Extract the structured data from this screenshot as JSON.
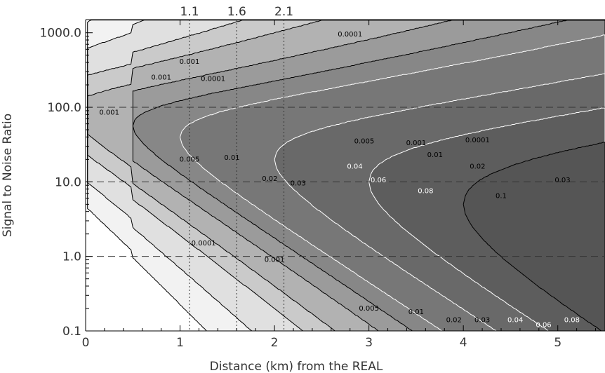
{
  "chart_data": {
    "type": "contour",
    "xlabel": "Distance (km) from the REAL",
    "ylabel": "Signal to Noise Ratio",
    "xlim": [
      0,
      5.5
    ],
    "ylim": [
      0.1,
      1500
    ],
    "y_scale": "log",
    "x_ticks": [
      "0",
      "1",
      "2",
      "3",
      "4",
      "5"
    ],
    "y_ticks": [
      "0.1",
      "1.0",
      "10.0",
      "100.0",
      "1000.0"
    ],
    "top_markers": [
      {
        "label": "1.1",
        "x": 1.1
      },
      {
        "label": "1.6",
        "x": 1.6
      },
      {
        "label": "2.1",
        "x": 2.1
      }
    ],
    "reference_lines_y": [
      1,
      10,
      100
    ],
    "contour_levels": [
      0.0001,
      0.001,
      0.005,
      0.01,
      0.02,
      0.03,
      0.04,
      0.06,
      0.08,
      0.1
    ],
    "contour_labels": [
      {
        "text": "0.0001",
        "x": 2.8,
        "y": 950,
        "color": "#000000"
      },
      {
        "text": "0.001",
        "x": 1.1,
        "y": 410,
        "color": "#000000"
      },
      {
        "text": "0.001",
        "x": 0.8,
        "y": 250,
        "color": "#000000"
      },
      {
        "text": "0.0001",
        "x": 1.35,
        "y": 240,
        "color": "#000000"
      },
      {
        "text": "0.001",
        "x": 0.25,
        "y": 85,
        "color": "#000000"
      },
      {
        "text": "0.005",
        "x": 1.1,
        "y": 20,
        "color": "#000000"
      },
      {
        "text": "0.01",
        "x": 1.55,
        "y": 21,
        "color": "#000000"
      },
      {
        "text": "0.02",
        "x": 1.95,
        "y": 11,
        "color": "#000000"
      },
      {
        "text": "0.03",
        "x": 2.25,
        "y": 9.5,
        "color": "#000000"
      },
      {
        "text": "0.04",
        "x": 2.85,
        "y": 16,
        "color": "#ffffff"
      },
      {
        "text": "0.06",
        "x": 3.1,
        "y": 10.5,
        "color": "#ffffff"
      },
      {
        "text": "0.08",
        "x": 3.6,
        "y": 7.5,
        "color": "#ffffff"
      },
      {
        "text": "0.1",
        "x": 4.4,
        "y": 6.5,
        "color": "#000000"
      },
      {
        "text": "0.005",
        "x": 2.95,
        "y": 35,
        "color": "#000000"
      },
      {
        "text": "0.001",
        "x": 3.5,
        "y": 33,
        "color": "#000000"
      },
      {
        "text": "0.01",
        "x": 3.7,
        "y": 23,
        "color": "#000000"
      },
      {
        "text": "0.0001",
        "x": 4.15,
        "y": 36,
        "color": "#000000"
      },
      {
        "text": "0.02",
        "x": 4.15,
        "y": 16,
        "color": "#000000"
      },
      {
        "text": "0.03",
        "x": 5.05,
        "y": 10.5,
        "color": "#000000"
      },
      {
        "text": "0.0001",
        "x": 1.25,
        "y": 1.5,
        "color": "#000000"
      },
      {
        "text": "0.001",
        "x": 2.0,
        "y": 0.9,
        "color": "#000000"
      },
      {
        "text": "0.005",
        "x": 3.0,
        "y": 0.2,
        "color": "#000000"
      },
      {
        "text": "0.01",
        "x": 3.5,
        "y": 0.18,
        "color": "#000000"
      },
      {
        "text": "0.02",
        "x": 3.9,
        "y": 0.14,
        "color": "#000000"
      },
      {
        "text": "0.03",
        "x": 4.2,
        "y": 0.14,
        "color": "#000000"
      },
      {
        "text": "0.04",
        "x": 4.55,
        "y": 0.14,
        "color": "#ffffff"
      },
      {
        "text": "0.06",
        "x": 4.85,
        "y": 0.12,
        "color": "#ffffff"
      },
      {
        "text": "0.08",
        "x": 5.15,
        "y": 0.14,
        "color": "#ffffff"
      }
    ],
    "fill_colors": [
      "#f2f2f2",
      "#e0e0e0",
      "#cacaca",
      "#b2b2b2",
      "#9b9b9b",
      "#878787",
      "#777777",
      "#696969",
      "#5d5d5d",
      "#555555"
    ]
  }
}
